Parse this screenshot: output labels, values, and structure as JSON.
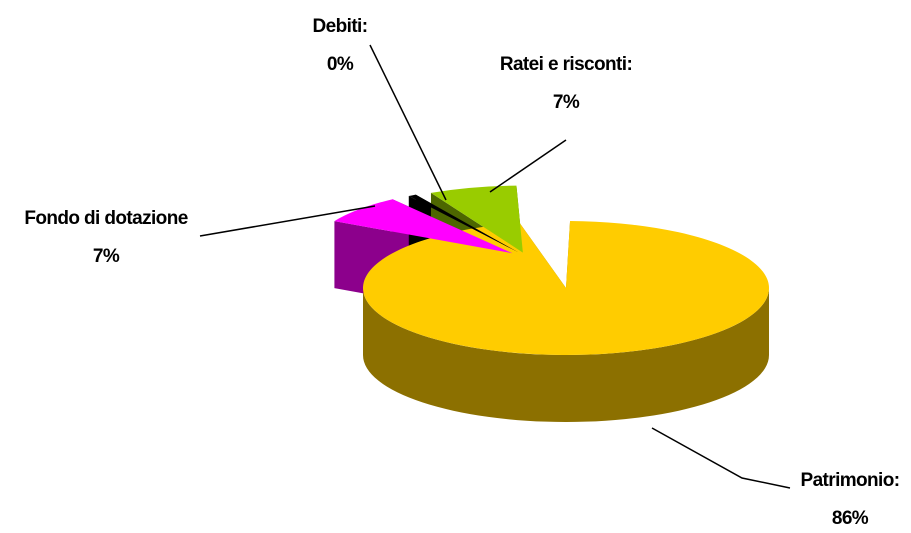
{
  "chart_data": {
    "type": "pie",
    "style": "3d-exploded",
    "slices": [
      {
        "name": "Patrimonio:",
        "percent_label": "86%",
        "value": 86,
        "color": "#ffcc00",
        "side_color": "#8c7000"
      },
      {
        "name": "Fondo di dotazione",
        "percent_label": "7%",
        "value": 7,
        "color": "#ff00ff",
        "side_color": "#8c008c"
      },
      {
        "name": "Debiti:",
        "percent_label": "0%",
        "value": 0.4,
        "color": "#000000",
        "side_color": "#000000"
      },
      {
        "name": "Ratei e risconti:",
        "percent_label": "7%",
        "value": 7,
        "color": "#99cc00",
        "side_color": "#4d6600"
      }
    ],
    "legend": "none",
    "labels": "callouts with leader lines"
  }
}
